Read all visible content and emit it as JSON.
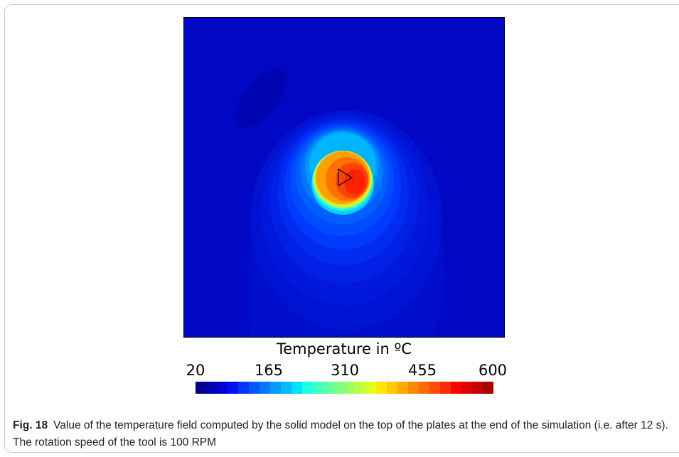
{
  "figure": {
    "colorbar_title": "Temperature in ºC",
    "colorbar_ticks": [
      "20",
      "165",
      "310",
      "455",
      "600"
    ],
    "colorbar_colors": [
      "#00008f",
      "#0000b0",
      "#0000d4",
      "#0010f5",
      "#0034ff",
      "#0058ff",
      "#0078ff",
      "#009cff",
      "#00bcff",
      "#00e0ff",
      "#20ffe0",
      "#40ffc0",
      "#60ffa0",
      "#80ff80",
      "#a0ff60",
      "#c0ff40",
      "#e0ff20",
      "#ffe800",
      "#ffc800",
      "#ffa800",
      "#ff8800",
      "#ff6a00",
      "#ff4a00",
      "#ff2a00",
      "#ff0000",
      "#e00000",
      "#c40000",
      "#a80000"
    ]
  },
  "caption": {
    "label": "Fig. 18",
    "text": "Value of the temperature field computed by the solid model on the top of the plates at the end of the simulation (i.e. after 12 s). The rotation speed of the tool is 100 RPM"
  }
}
